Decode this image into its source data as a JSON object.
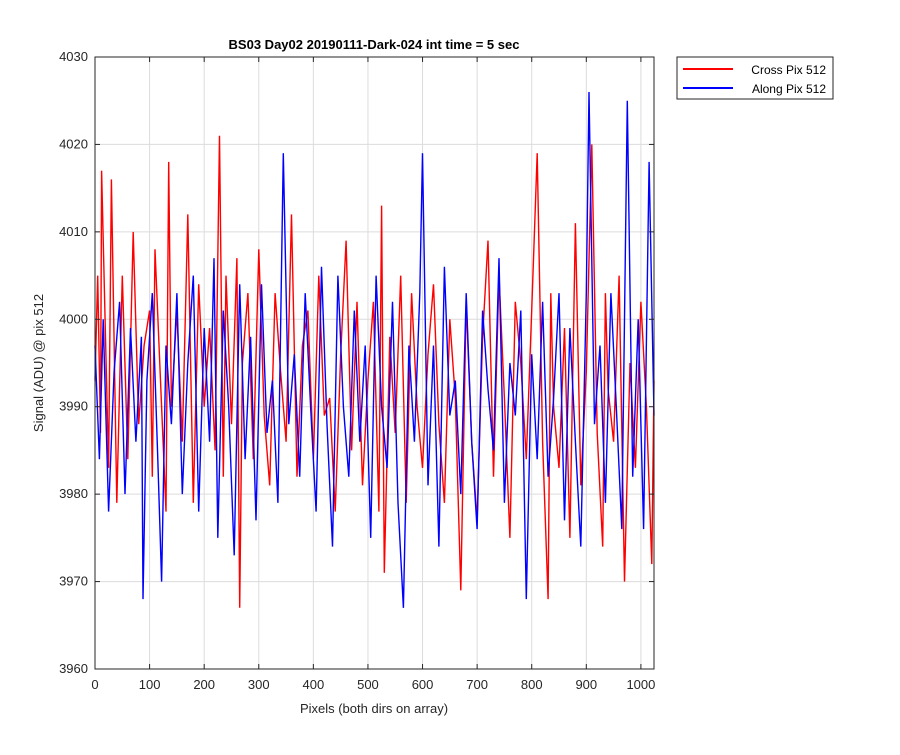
{
  "chart_data": {
    "type": "line",
    "title": "BS03 Day02 20190111-Dark-024 int time = 5 sec",
    "xlabel": "Pixels (both dirs on array)",
    "ylabel": "Signal (ADU) @ pix 512",
    "xlim": [
      0,
      1024
    ],
    "ylim": [
      3960,
      4030
    ],
    "xticks": [
      0,
      100,
      200,
      300,
      400,
      500,
      600,
      700,
      800,
      900,
      1000
    ],
    "yticks": [
      3960,
      3970,
      3980,
      3990,
      4000,
      4010,
      4020,
      4030
    ],
    "grid": true,
    "legend_position": "outside-top-right",
    "series": [
      {
        "name": "Cross Pix 512",
        "color": "#ff0000",
        "x": [
          0,
          5,
          10,
          12,
          20,
          25,
          30,
          40,
          50,
          60,
          70,
          80,
          90,
          100,
          105,
          110,
          120,
          130,
          135,
          140,
          150,
          160,
          170,
          180,
          190,
          200,
          210,
          220,
          228,
          235,
          240,
          250,
          260,
          265,
          270,
          280,
          290,
          300,
          310,
          320,
          330,
          340,
          350,
          360,
          370,
          380,
          390,
          400,
          410,
          420,
          430,
          440,
          450,
          460,
          470,
          480,
          490,
          500,
          510,
          520,
          525,
          530,
          540,
          550,
          560,
          570,
          580,
          590,
          600,
          610,
          620,
          630,
          640,
          650,
          660,
          670,
          680,
          690,
          700,
          710,
          720,
          730,
          740,
          750,
          760,
          770,
          780,
          790,
          800,
          810,
          820,
          830,
          835,
          840,
          850,
          860,
          870,
          880,
          890,
          900,
          910,
          920,
          930,
          935,
          940,
          950,
          960,
          970,
          980,
          990,
          1000,
          1010,
          1020,
          1024
        ],
        "y": [
          3993,
          4005,
          3987,
          4017,
          3996,
          3983,
          4016,
          3979,
          4005,
          3984,
          4010,
          3988,
          3997,
          4001,
          3982,
          4008,
          3993,
          3978,
          4018,
          3990,
          4001,
          3986,
          4012,
          3979,
          4004,
          3990,
          3999,
          3985,
          4021,
          3982,
          4005,
          3988,
          4007,
          3967,
          3995,
          4003,
          3984,
          4008,
          3989,
          3981,
          4003,
          3994,
          3986,
          4012,
          3982,
          3997,
          4001,
          3984,
          4005,
          3989,
          3991,
          3978,
          3996,
          4009,
          3985,
          4002,
          3981,
          3993,
          4002,
          3978,
          4013,
          3971,
          3998,
          3987,
          4005,
          3979,
          4003,
          3990,
          3983,
          3996,
          4004,
          3988,
          3979,
          4000,
          3991,
          3969,
          4002,
          3986,
          3977,
          3998,
          4009,
          3982,
          4005,
          3991,
          3975,
          4002,
          3995,
          3984,
          4001,
          4019,
          3986,
          3968,
          4003,
          3990,
          3983,
          3999,
          3975,
          4011,
          3981,
          3994,
          4020,
          3987,
          3974,
          4003,
          3992,
          3986,
          4005,
          3970,
          3995,
          3983,
          4002,
          3990,
          3972,
          3993
        ]
      },
      {
        "name": "Along Pix 512",
        "color": "#0000ff",
        "x": [
          0,
          8,
          15,
          25,
          35,
          45,
          55,
          65,
          75,
          85,
          88,
          95,
          105,
          115,
          122,
          130,
          140,
          150,
          160,
          170,
          180,
          190,
          200,
          210,
          218,
          225,
          235,
          245,
          255,
          265,
          275,
          285,
          295,
          305,
          315,
          325,
          335,
          345,
          355,
          365,
          375,
          385,
          395,
          405,
          415,
          425,
          435,
          445,
          455,
          465,
          475,
          485,
          495,
          505,
          515,
          525,
          535,
          545,
          555,
          565,
          575,
          585,
          595,
          600,
          610,
          620,
          630,
          640,
          650,
          660,
          670,
          680,
          690,
          700,
          710,
          720,
          730,
          740,
          750,
          760,
          770,
          780,
          790,
          800,
          810,
          820,
          830,
          840,
          850,
          860,
          870,
          880,
          890,
          900,
          905,
          915,
          925,
          935,
          945,
          955,
          965,
          975,
          985,
          995,
          1005,
          1015,
          1024
        ],
        "y": [
          3997,
          3984,
          4000,
          3978,
          3994,
          4002,
          3980,
          3999,
          3986,
          3998,
          3968,
          3993,
          4003,
          3984,
          3970,
          3997,
          3988,
          4003,
          3980,
          3995,
          4005,
          3978,
          3999,
          3986,
          4007,
          3975,
          4001,
          3990,
          3973,
          4004,
          3984,
          3998,
          3977,
          4004,
          3987,
          3993,
          3979,
          4019,
          3988,
          3996,
          3982,
          4003,
          3990,
          3978,
          4006,
          3988,
          3974,
          4005,
          3990,
          3982,
          4001,
          3986,
          3997,
          3975,
          4005,
          3990,
          3983,
          4002,
          3979,
          3967,
          3997,
          3986,
          4003,
          4019,
          3981,
          3997,
          3974,
          4006,
          3989,
          3993,
          3980,
          4003,
          3986,
          3976,
          4001,
          3992,
          3985,
          4007,
          3979,
          3995,
          3989,
          4001,
          3968,
          3996,
          3984,
          4002,
          3982,
          3991,
          4003,
          3977,
          3999,
          3986,
          3974,
          4003,
          4026,
          3988,
          3997,
          3979,
          4003,
          3990,
          3976,
          4025,
          3982,
          4000,
          3976,
          4018,
          3989
        ]
      }
    ]
  }
}
